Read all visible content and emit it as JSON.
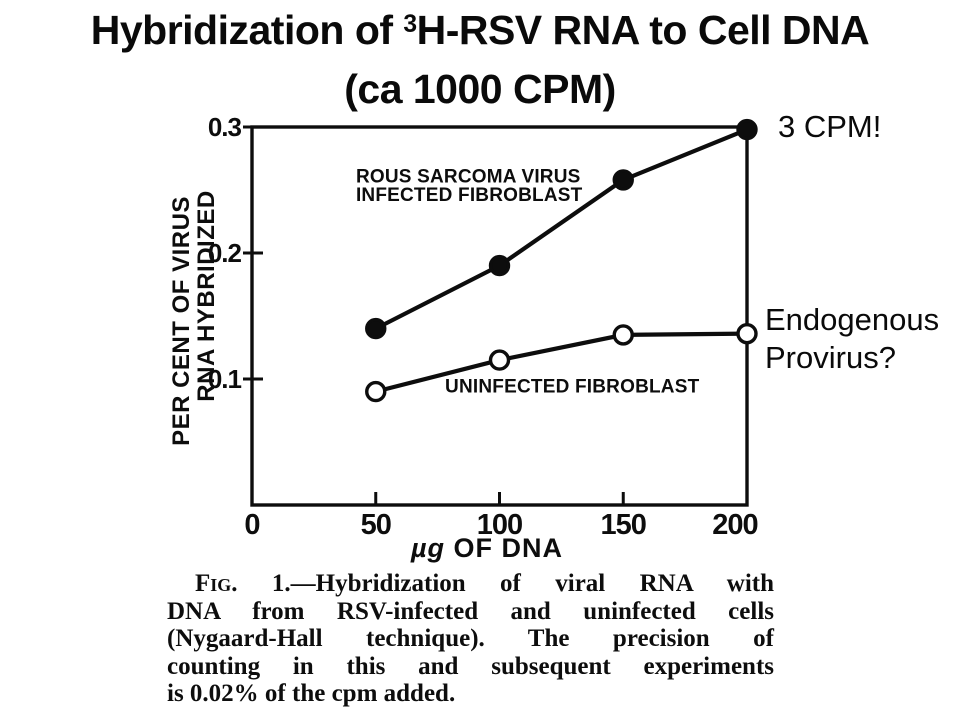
{
  "colors": {
    "ink": "#0d0d0d",
    "background": "#ffffff"
  },
  "title": {
    "line1_pre": "Hybridization of ",
    "line1_sup": "3",
    "line1_post": "H-RSV RNA to Cell DNA",
    "line2": "(ca 1000 CPM)"
  },
  "annotations": {
    "cpm": "3 CPM!",
    "provirus_line1": "Endogenous",
    "provirus_line2": "Provirus?"
  },
  "chart_data": {
    "type": "line",
    "title": "",
    "xlabel": "µg OF DNA",
    "ylabel_lines": [
      "PER CENT OF VIRUS",
      "RNA HYBRIDIZED"
    ],
    "xlim": [
      0,
      200
    ],
    "ylim": [
      0,
      0.3
    ],
    "grid": false,
    "legend_position": "inside-plot-labels",
    "x_ticks": [
      {
        "v": 0,
        "label": "0"
      },
      {
        "v": 50,
        "label": "50"
      },
      {
        "v": 100,
        "label": "100"
      },
      {
        "v": 150,
        "label": "150"
      },
      {
        "v": 200,
        "label": "200"
      }
    ],
    "y_ticks": [
      {
        "v": 0.1,
        "label": "0.1"
      },
      {
        "v": 0.2,
        "label": "0.2"
      },
      {
        "v": 0.3,
        "label": "0.3"
      }
    ],
    "series": [
      {
        "name": "ROUS SARCOMA VIRUS INFECTED FIBROBLAST",
        "marker": "filled",
        "label_lines": [
          "ROUS SARCOMA VIRUS",
          "INFECTED FIBROBLAST"
        ],
        "label_anchor": {
          "x": 42,
          "y": 0.268
        },
        "x": [
          50,
          100,
          150,
          200
        ],
        "y": [
          0.14,
          0.19,
          0.258,
          0.298
        ]
      },
      {
        "name": "UNINFECTED FIBROBLAST",
        "marker": "open",
        "label_lines": [
          "UNINFECTED FIBROBLAST"
        ],
        "label_anchor": {
          "x": 78,
          "y": 0.101
        },
        "x": [
          50,
          100,
          150,
          200
        ],
        "y": [
          0.09,
          0.115,
          0.135,
          0.136
        ]
      }
    ]
  },
  "caption": {
    "fig": "Fig.",
    "line1_rest": "1.—Hybridization of viral RNA with",
    "line2": "DNA from RSV-infected and uninfected cells",
    "line3": "(Nygaard-Hall technique). The precision of",
    "line4": "counting in this and subsequent experiments",
    "line5": "is 0.02% of the cpm added."
  }
}
